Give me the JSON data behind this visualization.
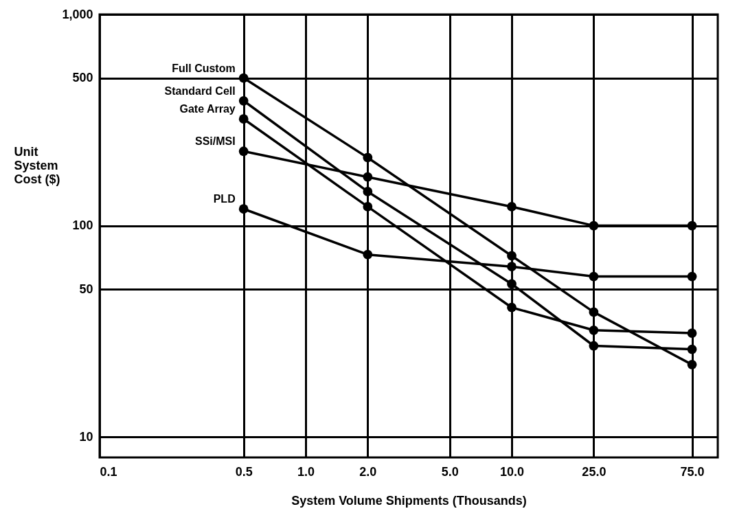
{
  "chart_data": {
    "type": "line",
    "xlabel": "System Volume Shipments (Thousands)",
    "ylabel": "Unit System Cost ($)",
    "x": [
      0.5,
      2.0,
      10.0,
      25.0,
      75.0
    ],
    "series": [
      {
        "name": "Full Custom",
        "color": "#000000",
        "values": [
          500,
          210,
          72,
          39,
          22
        ]
      },
      {
        "name": "Standard Cell",
        "color": "#000000",
        "values": [
          390,
          145,
          53,
          27,
          26
        ]
      },
      {
        "name": "Gate Array",
        "color": "#000000",
        "values": [
          320,
          123,
          41,
          32,
          31
        ]
      },
      {
        "name": "SSi/MSI",
        "color": "#000000",
        "values": [
          225,
          170,
          123,
          100,
          100
        ]
      },
      {
        "name": "PLD",
        "color": "#000000",
        "values": [
          120,
          73,
          64,
          57.5,
          57.5
        ]
      }
    ],
    "log": "xy",
    "xlim": [
      0.1,
      100
    ],
    "ylim": [
      8,
      1000
    ],
    "xticks": [
      0.1,
      0.5,
      {
        "value": 1,
        "label": "1.0"
      },
      {
        "value": 2,
        "label": "2.0"
      },
      {
        "value": 5,
        "label": "5.0"
      },
      {
        "value": 10,
        "label": "10.0"
      },
      {
        "value": 25,
        "label": "25.0"
      },
      {
        "value": 75,
        "label": "75.0"
      }
    ],
    "yticks": [
      10,
      50,
      100,
      500,
      {
        "value": 1000,
        "label": "1,000"
      }
    ],
    "grid": true,
    "legend": false,
    "marker": "circle",
    "line_style": "solid"
  }
}
